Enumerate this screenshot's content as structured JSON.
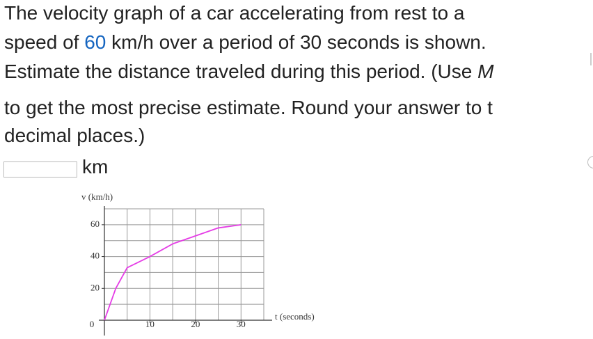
{
  "question": {
    "line1": "The velocity graph of a car accelerating from rest to a",
    "line2": [
      "speed of ",
      "60",
      " km/h over a period of 30 seconds is shown."
    ],
    "line3": [
      "Estimate the distance traveled during this period. (Use ",
      "M"
    ],
    "line4": "to get the most precise estimate. Round your answer to t",
    "line5": "decimal places.)"
  },
  "answer": {
    "unit": "km"
  },
  "chart_data": {
    "type": "line",
    "ylabel": "v (km/h)",
    "xlabel": "t (seconds)",
    "x": [
      0,
      2.5,
      5,
      10,
      15,
      20,
      25,
      30
    ],
    "values": [
      0,
      20,
      33,
      40,
      48,
      53,
      58,
      60
    ],
    "color": "#e53de6",
    "xlim": [
      0,
      35
    ],
    "ylim": [
      0,
      70
    ],
    "xticks": [
      0,
      10,
      20,
      30
    ],
    "yticks": [
      20,
      40,
      60
    ],
    "xgrid": [
      0,
      5,
      10,
      15,
      20,
      25,
      30,
      35
    ],
    "ygrid": [
      0,
      10,
      20,
      30,
      40,
      50,
      60,
      70
    ],
    "grid": true
  }
}
